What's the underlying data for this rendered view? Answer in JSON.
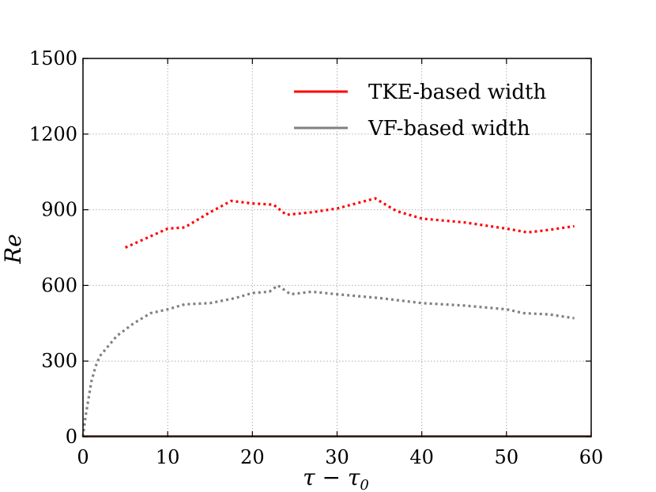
{
  "chart_data": {
    "type": "line",
    "title": "",
    "xlabel": "τ − τ",
    "xlabel_subscript": "0",
    "ylabel": "Re",
    "xlim": [
      0,
      60
    ],
    "ylim": [
      0,
      1500
    ],
    "xticks": [
      0,
      10,
      20,
      30,
      40,
      50,
      60
    ],
    "yticks": [
      0,
      300,
      600,
      900,
      1200,
      1500
    ],
    "grid": true,
    "legend_position": "top-right",
    "series": [
      {
        "name": "TKE-based width",
        "color": "#ff0000",
        "x": [
          5,
          8,
          10,
          12,
          15,
          17.5,
          20,
          22.5,
          24,
          27,
          30,
          34.5,
          37,
          40,
          45,
          50,
          52.5,
          55,
          58
        ],
        "y": [
          750,
          795,
          825,
          830,
          890,
          935,
          925,
          920,
          880,
          890,
          905,
          945,
          895,
          865,
          850,
          825,
          810,
          820,
          835
        ]
      },
      {
        "name": "VF-based width",
        "color": "#808080",
        "x": [
          0,
          0.3,
          0.7,
          1,
          1.5,
          2,
          3,
          4,
          5,
          6,
          7,
          8,
          10,
          12,
          15,
          18,
          20,
          22,
          23,
          24.5,
          27,
          30,
          35,
          40,
          45,
          50,
          52,
          55,
          58
        ],
        "y": [
          0,
          80,
          160,
          220,
          280,
          320,
          360,
          400,
          425,
          450,
          470,
          490,
          505,
          525,
          530,
          550,
          570,
          575,
          600,
          565,
          575,
          565,
          550,
          530,
          520,
          505,
          490,
          485,
          470
        ]
      }
    ]
  }
}
